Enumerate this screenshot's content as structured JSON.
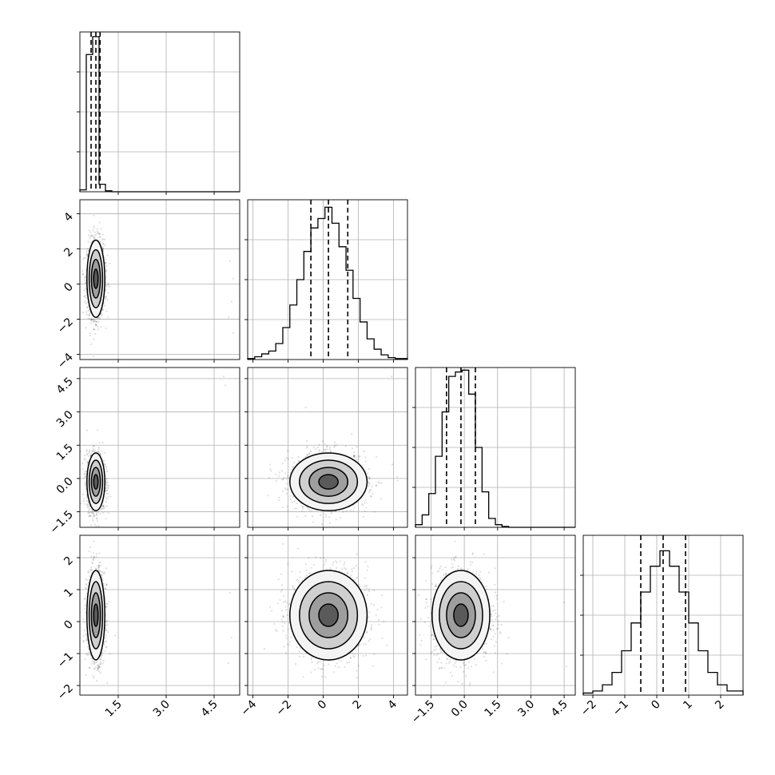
{
  "chart_data": {
    "type": "scatter",
    "title": "",
    "description_of_layout": "",
    "parameters": [
      {
        "index": 0,
        "range": [
          0.3,
          5.3
        ],
        "ticks": [
          "1.5",
          "3.0",
          "4.5"
        ],
        "tick_values": [
          1.5,
          3.0,
          4.5
        ],
        "median": 0.8,
        "quantiles": [
          0.65,
          0.8,
          0.93
        ],
        "spread": 0.14
      },
      {
        "index": 1,
        "range": [
          -4.3,
          4.8
        ],
        "ticks": [
          "−4",
          "−2",
          "0",
          "2",
          "4"
        ],
        "tick_values": [
          -4,
          -2,
          0,
          2,
          4
        ],
        "median": 0.3,
        "quantiles": [
          -0.7,
          0.3,
          1.4
        ],
        "spread": 1.1
      },
      {
        "index": 2,
        "range": [
          -2.2,
          5.0
        ],
        "ticks": [
          "−1.5",
          "0.0",
          "1.5",
          "3.0",
          "4.5"
        ],
        "tick_values": [
          -1.5,
          0.0,
          1.5,
          3.0,
          4.5
        ],
        "median": -0.15,
        "quantiles": [
          -0.8,
          -0.15,
          0.5
        ],
        "spread": 0.65
      },
      {
        "index": 3,
        "range": [
          -2.3,
          2.7
        ],
        "ticks": [
          "−2",
          "−1",
          "0",
          "1",
          "2"
        ],
        "tick_values": [
          -2,
          -1,
          0,
          1,
          2
        ],
        "median": 0.2,
        "quantiles": [
          -0.5,
          0.2,
          0.9
        ],
        "spread": 0.7
      }
    ],
    "histograms": [
      {
        "param": 0,
        "bin_edges": [
          0.3,
          0.5,
          0.7,
          0.9,
          1.1,
          1.3,
          1.5,
          5.3
        ],
        "counts": [
          2,
          146,
          165,
          8,
          1,
          0,
          0
        ],
        "ymax": 170
      },
      {
        "param": 1,
        "bin_edges": [
          -4.3,
          -3.9,
          -3.5,
          -3.1,
          -2.7,
          -2.3,
          -1.9,
          -1.5,
          -1.1,
          -0.7,
          -0.3,
          0.1,
          0.5,
          0.9,
          1.3,
          1.7,
          2.1,
          2.5,
          2.9,
          3.3,
          3.7,
          4.1,
          4.8
        ],
        "counts": [
          1,
          3,
          6,
          9,
          17,
          34,
          58,
          85,
          115,
          140,
          150,
          162,
          145,
          120,
          95,
          65,
          40,
          22,
          11,
          5,
          2,
          1
        ],
        "ymax": 170
      },
      {
        "param": 2,
        "bin_edges": [
          -2.2,
          -1.9,
          -1.6,
          -1.3,
          -1.0,
          -0.7,
          -0.4,
          -0.1,
          0.2,
          0.5,
          0.8,
          1.1,
          1.4,
          1.7,
          2.0,
          5.0
        ],
        "counts": [
          3,
          14,
          38,
          80,
          130,
          170,
          175,
          177,
          150,
          90,
          40,
          10,
          3,
          1,
          0
        ],
        "ymax": 180
      },
      {
        "param": 3,
        "bin_edges": [
          -2.3,
          -2.0,
          -1.7,
          -1.4,
          -1.1,
          -0.8,
          -0.5,
          -0.2,
          0.1,
          0.4,
          0.7,
          1.0,
          1.3,
          1.6,
          1.9,
          2.2,
          2.7
        ],
        "counts": [
          2,
          4,
          10,
          22,
          43,
          70,
          100,
          125,
          140,
          125,
          100,
          70,
          43,
          22,
          10,
          4
        ],
        "ymax": 155
      }
    ],
    "scatter_pairs": [
      {
        "row": 1,
        "col": 0,
        "center": [
          0.8,
          0.3
        ],
        "sigma": [
          0.14,
          1.1
        ],
        "outliers": [
          [
            5.0,
            1.3
          ],
          [
            5.1,
            0.3
          ],
          [
            5.05,
            -1.0
          ],
          [
            4.95,
            -1.9
          ],
          [
            5.1,
            -2.8
          ]
        ]
      },
      {
        "row": 2,
        "col": 0,
        "center": [
          0.8,
          -0.15
        ],
        "sigma": [
          0.14,
          0.65
        ],
        "outliers": [
          [
            4.8,
            4.6
          ],
          [
            4.85,
            4.2
          ]
        ]
      },
      {
        "row": 3,
        "col": 0,
        "center": [
          0.8,
          0.2
        ],
        "sigma": [
          0.14,
          0.7
        ],
        "outliers": [
          [
            5.0,
            0.9
          ],
          [
            5.05,
            -0.5
          ],
          [
            4.95,
            -1.3
          ]
        ]
      },
      {
        "row": 2,
        "col": 1,
        "center": [
          0.3,
          -0.15
        ],
        "sigma": [
          1.1,
          0.65
        ],
        "outliers": [
          [
            3.9,
            4.6
          ],
          [
            -1.0,
            3.2
          ]
        ]
      },
      {
        "row": 3,
        "col": 1,
        "center": [
          0.3,
          0.2
        ],
        "sigma": [
          1.1,
          0.7
        ],
        "outliers": []
      },
      {
        "row": 3,
        "col": 2,
        "center": [
          -0.15,
          0.2
        ],
        "sigma": [
          0.65,
          0.7
        ],
        "outliers": [
          [
            4.6,
            -1.4
          ],
          [
            4.5,
            0.6
          ]
        ]
      }
    ],
    "contour_sigma_levels": [
      0.5,
      1.0,
      1.5,
      2.0
    ],
    "grid": true,
    "legend": "none"
  }
}
